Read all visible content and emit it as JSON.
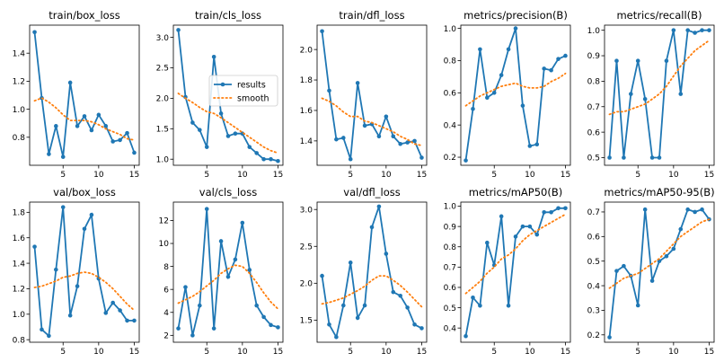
{
  "colors": {
    "results": "#1f77b4",
    "smooth": "#ff7f0e",
    "axes": "#000000",
    "background": "#ffffff"
  },
  "legend": {
    "subplot": 1,
    "entries": [
      "results",
      "smooth"
    ],
    "placement": "center-right"
  },
  "chart_data": [
    {
      "type": "line",
      "title": "train/box_loss",
      "xlabel": "",
      "ylabel": "",
      "x": [
        1,
        2,
        3,
        4,
        5,
        6,
        7,
        8,
        9,
        10,
        11,
        12,
        13,
        14,
        15
      ],
      "xlim": [
        0.3,
        15.7
      ],
      "ylim": [
        0.6,
        1.6
      ],
      "xticks": [
        5,
        10,
        15
      ],
      "yticks": [
        0.8,
        1.0,
        1.2,
        1.4
      ],
      "ytick_labels": [
        "0.8",
        "1.0",
        "1.2",
        "1.4"
      ],
      "series": [
        {
          "name": "results",
          "style": "line-markers",
          "values": [
            1.55,
            1.08,
            0.68,
            0.88,
            0.66,
            1.19,
            0.88,
            0.95,
            0.85,
            0.96,
            0.88,
            0.77,
            0.78,
            0.83,
            0.69
          ]
        },
        {
          "name": "smooth",
          "style": "dotted",
          "values": [
            1.06,
            1.08,
            1.05,
            1.01,
            0.96,
            0.92,
            0.92,
            0.92,
            0.91,
            0.89,
            0.86,
            0.84,
            0.82,
            0.79,
            0.78
          ]
        }
      ]
    },
    {
      "type": "line",
      "title": "train/cls_loss",
      "xlabel": "",
      "ylabel": "",
      "x": [
        1,
        2,
        3,
        4,
        5,
        6,
        7,
        8,
        9,
        10,
        11,
        12,
        13,
        14,
        15
      ],
      "xlim": [
        0.3,
        15.7
      ],
      "ylim": [
        0.9,
        3.2
      ],
      "xticks": [
        5,
        10,
        15
      ],
      "yticks": [
        1.0,
        1.5,
        2.0,
        2.5,
        3.0
      ],
      "ytick_labels": [
        "1.0",
        "1.5",
        "2.0",
        "2.5",
        "3.0"
      ],
      "series": [
        {
          "name": "results",
          "style": "line-markers",
          "values": [
            3.12,
            2.02,
            1.6,
            1.48,
            1.2,
            2.68,
            1.75,
            1.38,
            1.42,
            1.42,
            1.2,
            1.1,
            1.0,
            1.0,
            0.97
          ]
        },
        {
          "name": "smooth",
          "style": "dotted",
          "values": [
            2.08,
            2.0,
            1.93,
            1.85,
            1.78,
            1.75,
            1.68,
            1.6,
            1.52,
            1.44,
            1.36,
            1.28,
            1.2,
            1.14,
            1.1
          ]
        }
      ]
    },
    {
      "type": "line",
      "title": "train/dfl_loss",
      "xlabel": "",
      "ylabel": "",
      "x": [
        1,
        2,
        3,
        4,
        5,
        6,
        7,
        8,
        9,
        10,
        11,
        12,
        13,
        14,
        15
      ],
      "xlim": [
        0.3,
        15.7
      ],
      "ylim": [
        1.24,
        2.16
      ],
      "xticks": [
        5,
        10,
        15
      ],
      "yticks": [
        1.4,
        1.6,
        1.8,
        2.0
      ],
      "ytick_labels": [
        "1.4",
        "1.6",
        "1.8",
        "2.0"
      ],
      "series": [
        {
          "name": "results",
          "style": "line-markers",
          "values": [
            2.12,
            1.73,
            1.41,
            1.42,
            1.28,
            1.78,
            1.5,
            1.51,
            1.43,
            1.56,
            1.43,
            1.38,
            1.39,
            1.4,
            1.29
          ]
        },
        {
          "name": "smooth",
          "style": "dotted",
          "values": [
            1.68,
            1.66,
            1.63,
            1.59,
            1.56,
            1.56,
            1.53,
            1.52,
            1.5,
            1.48,
            1.46,
            1.43,
            1.41,
            1.38,
            1.37
          ]
        }
      ]
    },
    {
      "type": "line",
      "title": "metrics/precision(B)",
      "xlabel": "",
      "ylabel": "",
      "x": [
        1,
        2,
        3,
        4,
        5,
        6,
        7,
        8,
        9,
        10,
        11,
        12,
        13,
        14,
        15
      ],
      "xlim": [
        0.3,
        15.7
      ],
      "ylim": [
        0.15,
        1.02
      ],
      "xticks": [
        5,
        10,
        15
      ],
      "yticks": [
        0.2,
        0.4,
        0.6,
        0.8,
        1.0
      ],
      "ytick_labels": [
        "0.2",
        "0.4",
        "0.6",
        "0.8",
        "1.0"
      ],
      "series": [
        {
          "name": "results",
          "style": "line-markers",
          "values": [
            0.18,
            0.5,
            0.87,
            0.57,
            0.6,
            0.71,
            0.87,
            1.0,
            0.52,
            0.27,
            0.28,
            0.75,
            0.74,
            0.81,
            0.83
          ]
        },
        {
          "name": "smooth",
          "style": "dotted",
          "values": [
            0.52,
            0.55,
            0.58,
            0.6,
            0.62,
            0.64,
            0.65,
            0.66,
            0.64,
            0.63,
            0.63,
            0.64,
            0.67,
            0.69,
            0.72
          ]
        }
      ]
    },
    {
      "type": "line",
      "title": "metrics/recall(B)",
      "xlabel": "",
      "ylabel": "",
      "x": [
        1,
        2,
        3,
        4,
        5,
        6,
        7,
        8,
        9,
        10,
        11,
        12,
        13,
        14,
        15
      ],
      "xlim": [
        0.3,
        15.7
      ],
      "ylim": [
        0.47,
        1.02
      ],
      "xticks": [
        5,
        10,
        15
      ],
      "yticks": [
        0.5,
        0.6,
        0.7,
        0.8,
        0.9,
        1.0
      ],
      "ytick_labels": [
        "0.5",
        "0.6",
        "0.7",
        "0.8",
        "0.9",
        "1.0"
      ],
      "series": [
        {
          "name": "results",
          "style": "line-markers",
          "values": [
            0.5,
            0.88,
            0.5,
            0.75,
            0.88,
            0.73,
            0.5,
            0.5,
            0.88,
            1.0,
            0.75,
            1.0,
            0.99,
            1.0,
            1.0
          ]
        },
        {
          "name": "smooth",
          "style": "dotted",
          "values": [
            0.67,
            0.68,
            0.68,
            0.69,
            0.7,
            0.71,
            0.73,
            0.75,
            0.78,
            0.82,
            0.86,
            0.89,
            0.92,
            0.94,
            0.96
          ]
        }
      ]
    },
    {
      "type": "line",
      "title": "val/box_loss",
      "xlabel": "",
      "ylabel": "",
      "x": [
        1,
        2,
        3,
        4,
        5,
        6,
        7,
        8,
        9,
        10,
        11,
        12,
        13,
        14,
        15
      ],
      "xlim": [
        0.3,
        15.7
      ],
      "ylim": [
        0.78,
        1.88
      ],
      "xticks": [
        5,
        10,
        15
      ],
      "yticks": [
        0.8,
        1.0,
        1.2,
        1.4,
        1.6,
        1.8
      ],
      "ytick_labels": [
        "0.8",
        "1.0",
        "1.2",
        "1.4",
        "1.6",
        "1.8"
      ],
      "series": [
        {
          "name": "results",
          "style": "line-markers",
          "values": [
            1.53,
            0.88,
            0.83,
            1.35,
            1.84,
            0.99,
            1.22,
            1.67,
            1.78,
            1.28,
            1.01,
            1.09,
            1.03,
            0.95,
            0.95
          ]
        },
        {
          "name": "smooth",
          "style": "dotted",
          "values": [
            1.21,
            1.22,
            1.24,
            1.26,
            1.29,
            1.3,
            1.32,
            1.33,
            1.32,
            1.29,
            1.25,
            1.2,
            1.14,
            1.08,
            1.03
          ]
        }
      ]
    },
    {
      "type": "line",
      "title": "val/cls_loss",
      "xlabel": "",
      "ylabel": "",
      "x": [
        1,
        2,
        3,
        4,
        5,
        6,
        7,
        8,
        9,
        10,
        11,
        12,
        13,
        14,
        15
      ],
      "xlim": [
        0.3,
        15.7
      ],
      "ylim": [
        1.4,
        13.6
      ],
      "xticks": [
        5,
        10,
        15
      ],
      "yticks": [
        2,
        4,
        6,
        8,
        10,
        12
      ],
      "ytick_labels": [
        "2",
        "4",
        "6",
        "8",
        "10",
        "12"
      ],
      "series": [
        {
          "name": "results",
          "style": "line-markers",
          "values": [
            2.6,
            6.2,
            2.0,
            4.6,
            13.0,
            2.6,
            10.2,
            7.1,
            8.6,
            11.8,
            7.7,
            4.6,
            3.6,
            2.9,
            2.7
          ]
        },
        {
          "name": "smooth",
          "style": "dotted",
          "values": [
            4.8,
            5.1,
            5.4,
            5.8,
            6.3,
            6.8,
            7.4,
            7.8,
            8.1,
            8.0,
            7.4,
            6.6,
            5.7,
            4.9,
            4.3
          ]
        }
      ]
    },
    {
      "type": "line",
      "title": "val/dfl_loss",
      "xlabel": "",
      "ylabel": "",
      "x": [
        1,
        2,
        3,
        4,
        5,
        6,
        7,
        8,
        9,
        10,
        11,
        12,
        13,
        14,
        15
      ],
      "xlim": [
        0.3,
        15.7
      ],
      "ylim": [
        1.2,
        3.1
      ],
      "xticks": [
        5,
        10,
        15
      ],
      "yticks": [
        1.5,
        2.0,
        2.5,
        3.0
      ],
      "ytick_labels": [
        "1.5",
        "2.0",
        "2.5",
        "3.0"
      ],
      "series": [
        {
          "name": "results",
          "style": "line-markers",
          "values": [
            2.1,
            1.44,
            1.27,
            1.7,
            2.28,
            1.53,
            1.7,
            2.76,
            3.04,
            2.4,
            1.88,
            1.83,
            1.67,
            1.44,
            1.39
          ]
        },
        {
          "name": "smooth",
          "style": "dotted",
          "values": [
            1.72,
            1.74,
            1.77,
            1.8,
            1.85,
            1.9,
            1.96,
            2.04,
            2.1,
            2.1,
            2.04,
            1.97,
            1.88,
            1.78,
            1.68
          ]
        }
      ]
    },
    {
      "type": "line",
      "title": "metrics/mAP50(B)",
      "xlabel": "",
      "ylabel": "",
      "x": [
        1,
        2,
        3,
        4,
        5,
        6,
        7,
        8,
        9,
        10,
        11,
        12,
        13,
        14,
        15
      ],
      "xlim": [
        0.3,
        15.7
      ],
      "ylim": [
        0.33,
        1.02
      ],
      "xticks": [
        5,
        10,
        15
      ],
      "yticks": [
        0.4,
        0.5,
        0.6,
        0.7,
        0.8,
        0.9,
        1.0
      ],
      "ytick_labels": [
        "0.4",
        "0.5",
        "0.6",
        "0.7",
        "0.8",
        "0.9",
        "1.0"
      ],
      "series": [
        {
          "name": "results",
          "style": "line-markers",
          "values": [
            0.36,
            0.55,
            0.51,
            0.82,
            0.71,
            0.95,
            0.51,
            0.85,
            0.9,
            0.9,
            0.86,
            0.97,
            0.97,
            0.99,
            0.99
          ]
        },
        {
          "name": "smooth",
          "style": "dotted",
          "values": [
            0.57,
            0.6,
            0.63,
            0.67,
            0.7,
            0.74,
            0.76,
            0.79,
            0.83,
            0.86,
            0.88,
            0.9,
            0.92,
            0.94,
            0.96
          ]
        }
      ]
    },
    {
      "type": "line",
      "title": "metrics/mAP50-95(B)",
      "xlabel": "",
      "ylabel": "",
      "x": [
        1,
        2,
        3,
        4,
        5,
        6,
        7,
        8,
        9,
        10,
        11,
        12,
        13,
        14,
        15
      ],
      "xlim": [
        0.3,
        15.7
      ],
      "ylim": [
        0.17,
        0.74
      ],
      "xticks": [
        5,
        10,
        15
      ],
      "yticks": [
        0.2,
        0.3,
        0.4,
        0.5,
        0.6,
        0.7
      ],
      "ytick_labels": [
        "0.2",
        "0.3",
        "0.4",
        "0.5",
        "0.6",
        "0.7"
      ],
      "series": [
        {
          "name": "results",
          "style": "line-markers",
          "values": [
            0.19,
            0.46,
            0.48,
            0.44,
            0.32,
            0.71,
            0.42,
            0.5,
            0.52,
            0.55,
            0.63,
            0.71,
            0.7,
            0.71,
            0.67
          ]
        },
        {
          "name": "smooth",
          "style": "dotted",
          "values": [
            0.39,
            0.41,
            0.43,
            0.44,
            0.45,
            0.47,
            0.49,
            0.51,
            0.54,
            0.57,
            0.6,
            0.62,
            0.64,
            0.66,
            0.67
          ]
        }
      ]
    }
  ]
}
